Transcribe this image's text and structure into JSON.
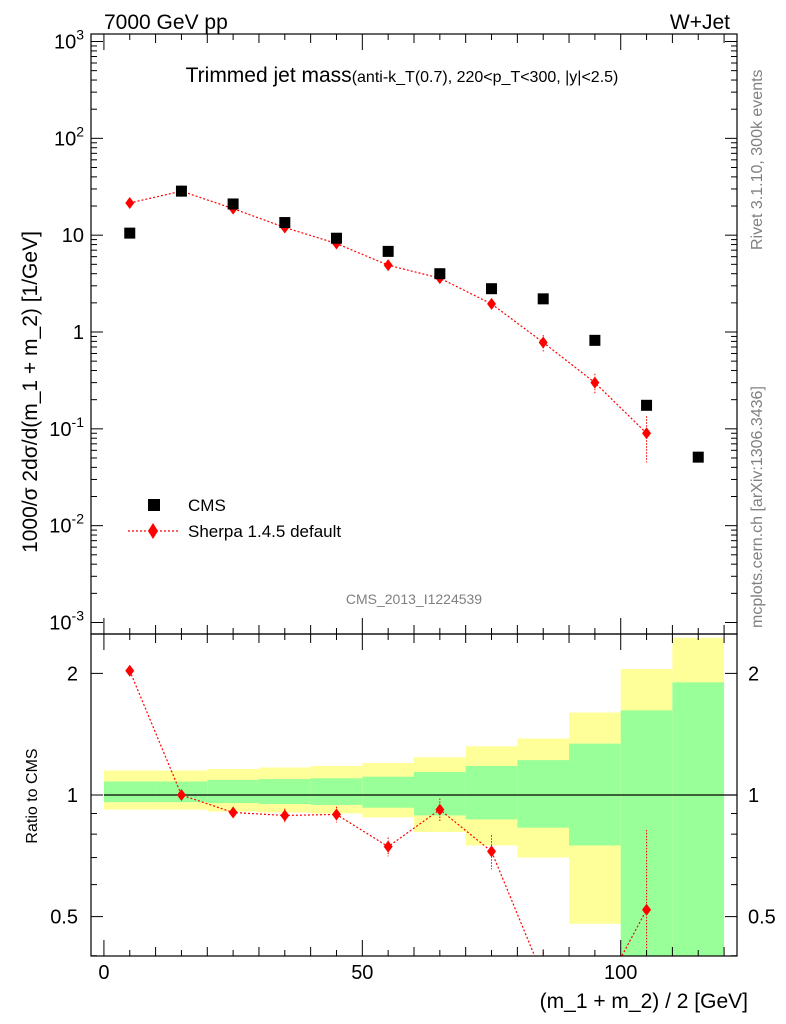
{
  "header": {
    "left": "7000 GeV pp",
    "right": "W+Jet"
  },
  "side_labels": {
    "rivet": "Rivet 3.1.10,  300k events",
    "site": "mcplots.cern.ch [arXiv:1306.3436]"
  },
  "chart_data": [
    {
      "type": "scatter",
      "title_main": "Trimmed jet mass",
      "title_sub": "(anti-k_T(0.7), 220<p_T<300, |y|<2.5)",
      "watermark": "CMS_2013_I1224539",
      "ylabel": "1000/σ 2dσ/d(m_1 + m_2) [1/GeV]",
      "xlim": [
        -2.5,
        122.5
      ],
      "ylim": [
        0.0008,
        1300
      ],
      "yscale": "log",
      "y_tick_labels": [
        "10^-3",
        "10^-2",
        "10^-1",
        "1",
        "10",
        "10^2",
        "10^3"
      ],
      "legend": {
        "position": "bottom-left",
        "entries": [
          "CMS",
          "Sherpa 1.4.5 default"
        ]
      },
      "series": [
        {
          "name": "CMS",
          "color": "#000000",
          "marker": "square",
          "x": [
            5,
            15,
            25,
            35,
            45,
            55,
            65,
            75,
            85,
            95,
            105,
            115
          ],
          "y": [
            10.5,
            28.5,
            21.0,
            13.5,
            9.3,
            6.8,
            4.0,
            2.8,
            2.2,
            0.82,
            0.175,
            0.051
          ]
        },
        {
          "name": "Sherpa 1.4.5 default",
          "color": "#ff0000",
          "marker": "diamond",
          "line": "dotted",
          "x": [
            5,
            15,
            25,
            35,
            45,
            55,
            65,
            75,
            85,
            95,
            105
          ],
          "y": [
            21.5,
            28.5,
            18.8,
            12.0,
            8.2,
            4.9,
            3.6,
            1.95,
            0.78,
            0.3,
            0.09
          ],
          "y_err_low": [
            1.0,
            1.2,
            0.9,
            0.7,
            0.6,
            0.4,
            0.35,
            0.25,
            0.15,
            0.07,
            0.045
          ],
          "y_err_high": [
            1.0,
            1.2,
            0.9,
            0.7,
            0.6,
            0.4,
            0.35,
            0.25,
            0.15,
            0.07,
            0.045
          ]
        }
      ]
    },
    {
      "type": "scatter",
      "ylabel": "Ratio to CMS",
      "xlabel": "(m_1 + m_2) / 2 [GeV]",
      "xlim": [
        -2.5,
        122.5
      ],
      "ylim": [
        0.35,
        2.3
      ],
      "x_ticks": [
        0,
        50,
        100
      ],
      "y_ticks": [
        0.5,
        1,
        2
      ],
      "bands": {
        "bin_edges": [
          0,
          10,
          20,
          30,
          40,
          50,
          60,
          70,
          80,
          90,
          100,
          110,
          120
        ],
        "outer_low": [
          0.92,
          0.92,
          0.91,
          0.905,
          0.9,
          0.88,
          0.81,
          0.75,
          0.7,
          0.48,
          0.25,
          0.05
        ],
        "outer_high": [
          1.15,
          1.15,
          1.16,
          1.17,
          1.18,
          1.2,
          1.24,
          1.32,
          1.38,
          1.6,
          2.05,
          2.45
        ],
        "inner_low": [
          0.96,
          0.96,
          0.955,
          0.95,
          0.945,
          0.93,
          0.89,
          0.87,
          0.83,
          0.75,
          0.35,
          0.15
        ],
        "inner_high": [
          1.08,
          1.08,
          1.09,
          1.095,
          1.1,
          1.11,
          1.14,
          1.18,
          1.22,
          1.34,
          1.62,
          1.9
        ],
        "outer_color": "#ffff99",
        "inner_color": "#99ff99"
      },
      "series": [
        {
          "name": "Sherpa 1.4.5 default",
          "color": "#ff0000",
          "marker": "diamond",
          "line": "dotted",
          "x": [
            5,
            15,
            25,
            35,
            45,
            55,
            65,
            75,
            85,
            95,
            105
          ],
          "y": [
            2.03,
            1.0,
            0.905,
            0.89,
            0.895,
            0.745,
            0.92,
            0.725,
            0.355,
            0.3,
            0.52
          ],
          "y_err_low": [
            0.05,
            0.02,
            0.03,
            0.035,
            0.04,
            0.04,
            0.06,
            0.07,
            0.06,
            0.08,
            0.28
          ],
          "y_err_high": [
            0.05,
            0.02,
            0.03,
            0.035,
            0.04,
            0.04,
            0.06,
            0.07,
            0.06,
            0.08,
            0.3
          ]
        }
      ]
    }
  ]
}
